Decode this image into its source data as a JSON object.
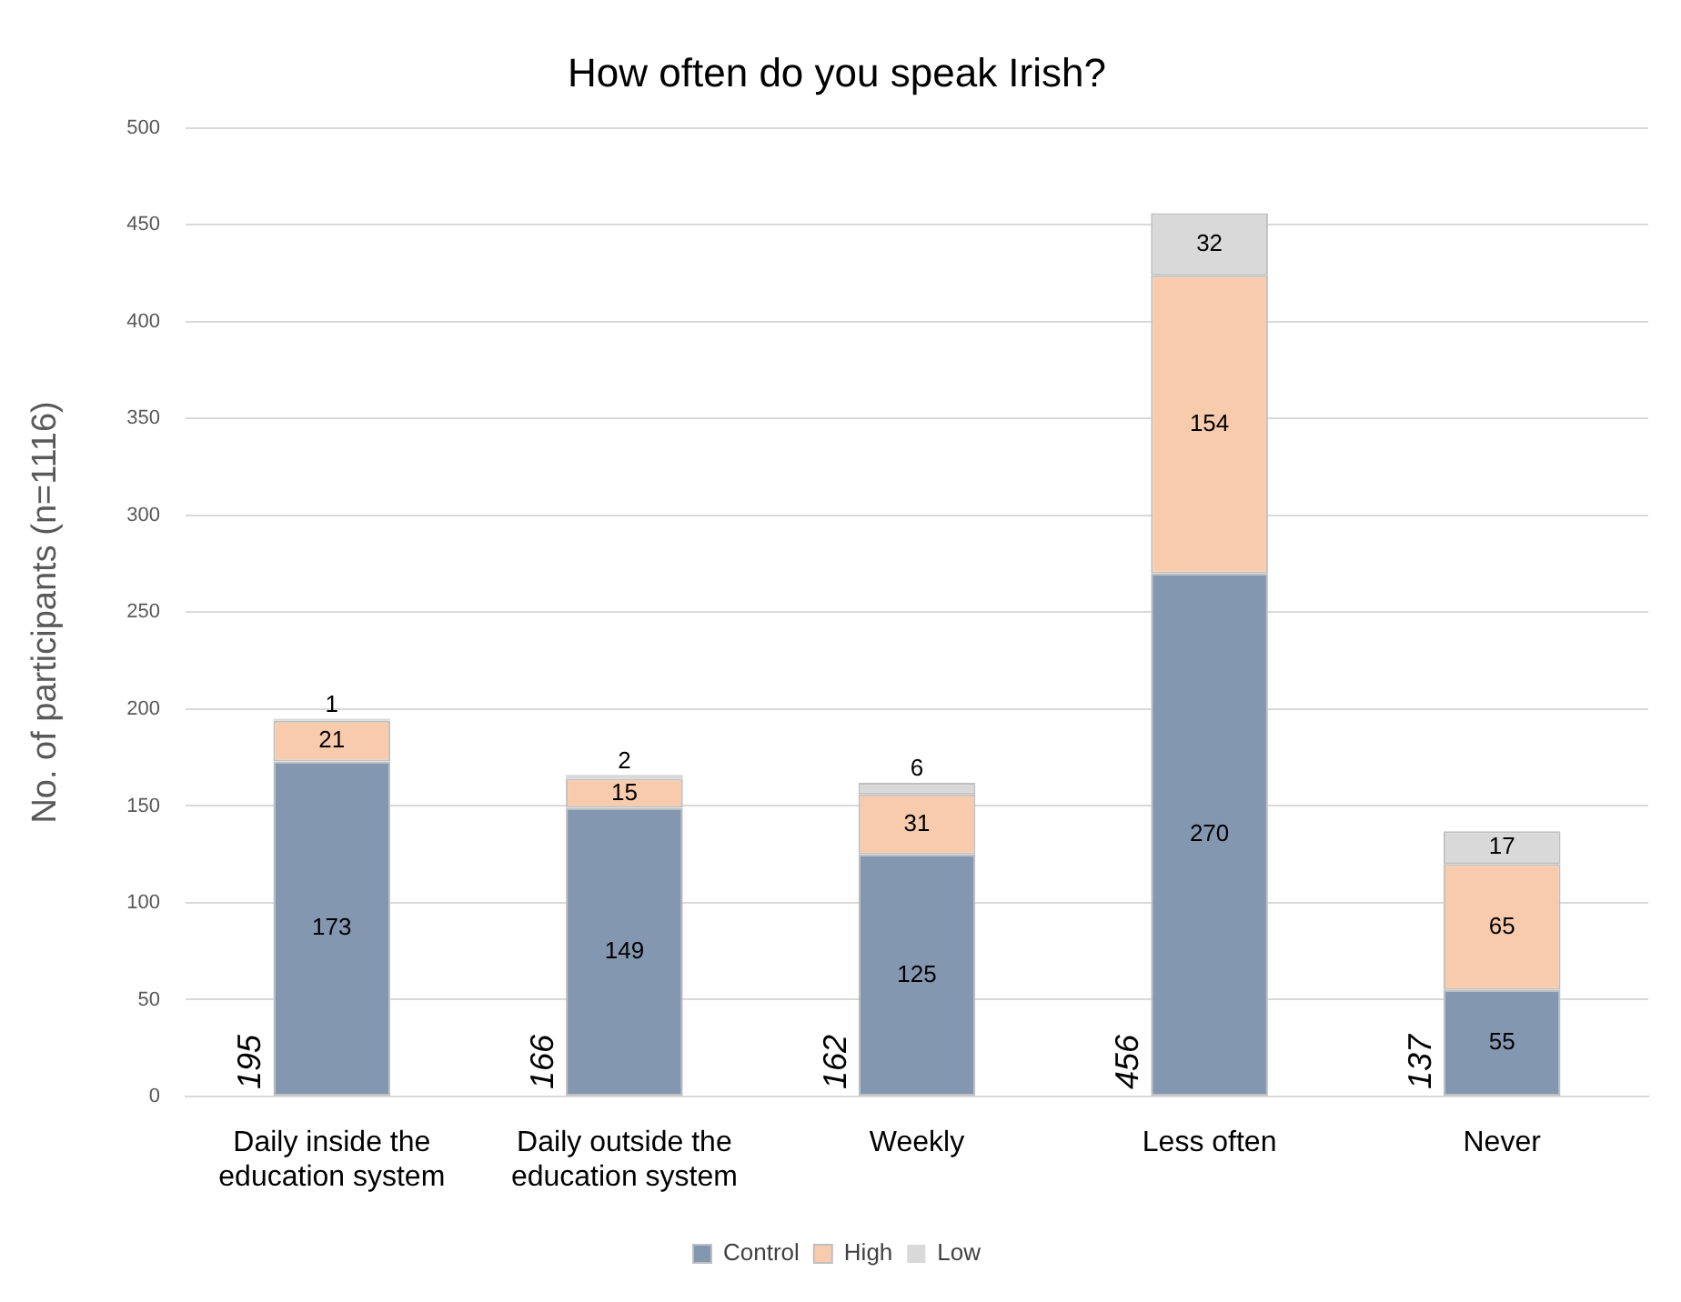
{
  "chart_data": {
    "type": "bar",
    "title": "How often do you speak Irish?",
    "ylabel": "No. of participants (n=1116)",
    "categories": [
      "Daily inside the education system",
      "Daily outside the education system",
      "Weekly",
      "Less often",
      "Never"
    ],
    "series": [
      {
        "name": "Control",
        "color": "#8497b0",
        "values": [
          173,
          149,
          125,
          270,
          55
        ]
      },
      {
        "name": "High",
        "color": "#f8cbad",
        "values": [
          21,
          15,
          31,
          154,
          65
        ]
      },
      {
        "name": "Low",
        "color": "#d9d9d9",
        "values": [
          1,
          2,
          6,
          32,
          17
        ]
      }
    ],
    "stacked": true,
    "ylim": [
      0,
      500
    ],
    "yticks": [
      0,
      50,
      100,
      150,
      200,
      250,
      300,
      350,
      400,
      450,
      500
    ],
    "grid": "y",
    "legend": "bottom",
    "data_labels": true,
    "totals": [
      "195",
      "166",
      "162",
      "456",
      "137"
    ]
  }
}
